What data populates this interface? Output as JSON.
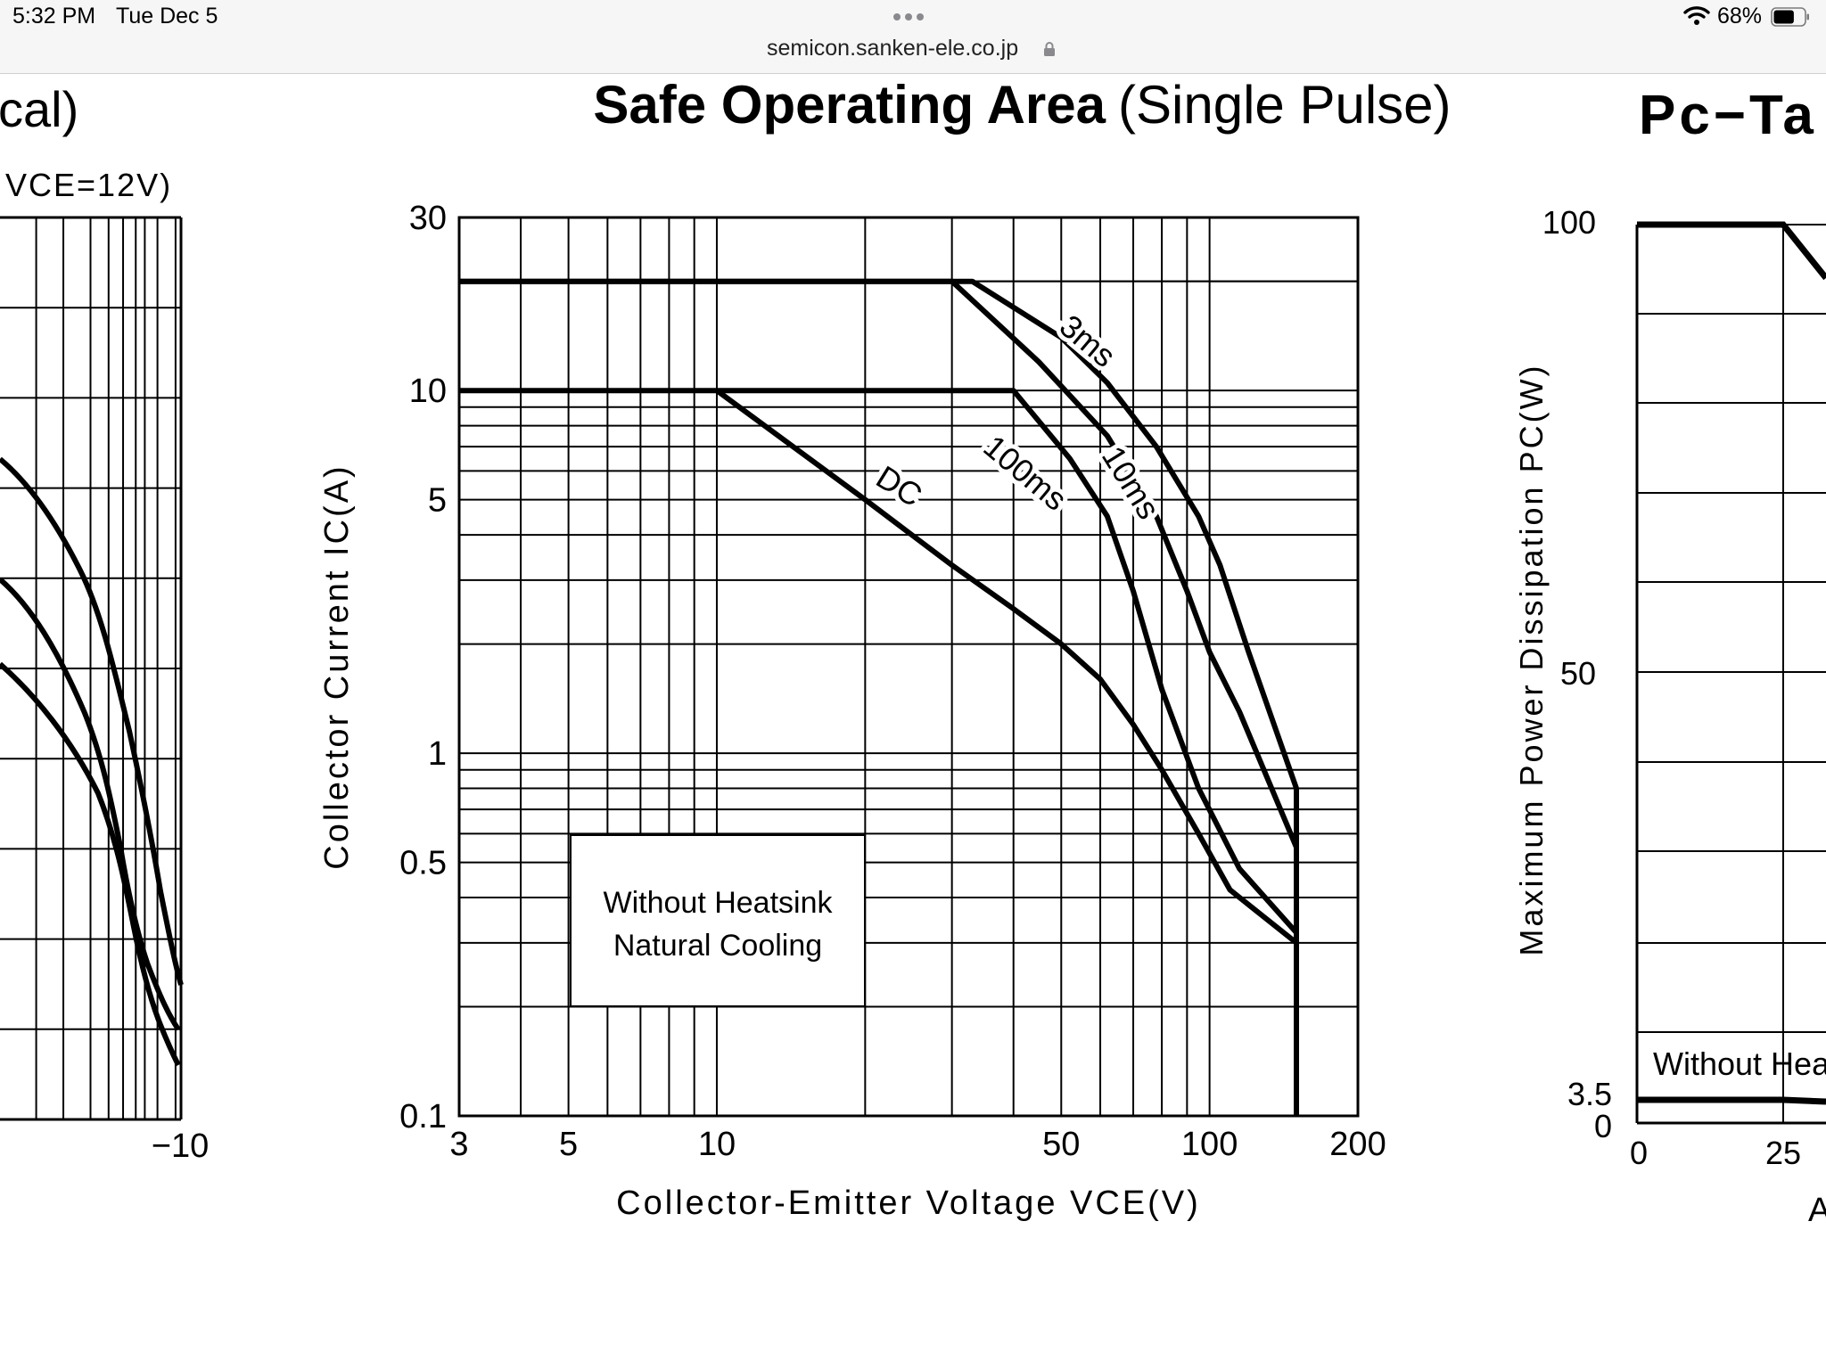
{
  "status_bar": {
    "time": "5:32 PM",
    "date": "Tue Dec 5",
    "url": "semicon.sanken-ele.co.jp",
    "battery": "68%",
    "battery_level": 0.68
  },
  "left_chart": {
    "title_fragment": "cal)",
    "condition_fragment": "VCE=12V)",
    "x_tick": "−10"
  },
  "chart_data": {
    "type": "line",
    "title": "Safe Operating Area",
    "subtitle": "(Single Pulse)",
    "xlabel": "Collector-Emitter Voltage VCE(V)",
    "ylabel": "Collector Current IC(A)",
    "xscale": "log",
    "yscale": "log",
    "xlim": [
      3,
      200
    ],
    "ylim": [
      0.1,
      30
    ],
    "x_ticks": [
      {
        "value": 3,
        "label": "3"
      },
      {
        "value": 5,
        "label": "5"
      },
      {
        "value": 10,
        "label": "10"
      },
      {
        "value": 50,
        "label": "50"
      },
      {
        "value": 100,
        "label": "100"
      },
      {
        "value": 200,
        "label": "200"
      }
    ],
    "y_ticks": [
      {
        "value": 0.1,
        "label": "0.1"
      },
      {
        "value": 0.5,
        "label": "0.5"
      },
      {
        "value": 1,
        "label": "1"
      },
      {
        "value": 5,
        "label": "5"
      },
      {
        "value": 10,
        "label": "10"
      },
      {
        "value": 30,
        "label": "30"
      }
    ],
    "grid": true,
    "annotation": [
      "Without Heatsink",
      "Natural Cooling"
    ],
    "series": [
      {
        "name": "3ms",
        "x": [
          3,
          33,
          50,
          62,
          78,
          95,
          105,
          120,
          150,
          150
        ],
        "y": [
          20,
          20,
          14,
          10.5,
          7,
          4.5,
          3.3,
          1.9,
          0.8,
          0.1
        ]
      },
      {
        "name": "10ms",
        "x": [
          3,
          30,
          45,
          62,
          78,
          90,
          100,
          115,
          150,
          150
        ],
        "y": [
          20,
          20,
          12,
          7.5,
          4.5,
          2.8,
          1.9,
          1.3,
          0.55,
          0.1
        ]
      },
      {
        "name": "100ms",
        "x": [
          3,
          40,
          52,
          62,
          70,
          80,
          95,
          115,
          150,
          150
        ],
        "y": [
          10,
          10,
          6.5,
          4.5,
          2.8,
          1.5,
          0.8,
          0.48,
          0.32,
          0.1
        ]
      },
      {
        "name": "DC",
        "x": [
          10,
          20,
          30,
          40,
          50,
          60,
          70,
          80,
          95,
          110,
          150,
          150
        ],
        "y": [
          10,
          5,
          3.3,
          2.5,
          2,
          1.6,
          1.2,
          0.9,
          0.6,
          0.42,
          0.3,
          0.1
        ]
      }
    ]
  },
  "right_chart": {
    "title_fragment": "Pc−Ta",
    "ylabel": "Maximum Power Dissipation PC(W)",
    "y_ticks": [
      "100",
      "50",
      "3.5",
      "0"
    ],
    "x_ticks": [
      "0",
      "25"
    ],
    "annotation_fragment": "Without Hea",
    "xlabel_fragment": "A"
  }
}
